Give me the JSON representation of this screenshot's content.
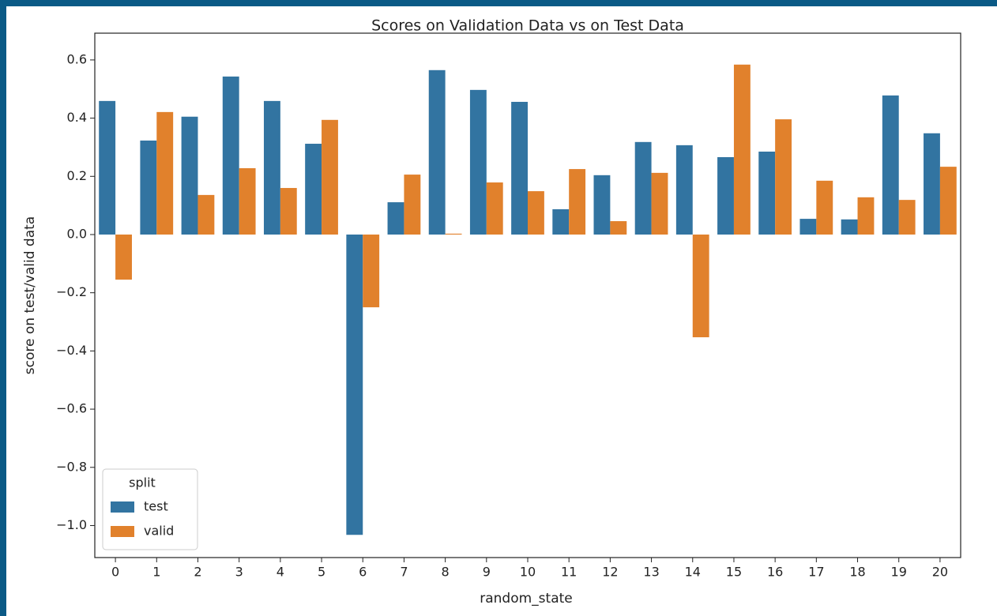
{
  "chart_data": {
    "type": "grouped_bar",
    "title": "Scores on Validation Data vs on Test Data",
    "x_label": "random_state",
    "y_label": "score on test/valid data",
    "categories": [
      "0",
      "1",
      "2",
      "3",
      "4",
      "5",
      "6",
      "7",
      "8",
      "9",
      "10",
      "11",
      "12",
      "13",
      "14",
      "15",
      "16",
      "17",
      "18",
      "19",
      "20"
    ],
    "series": [
      {
        "name": "test",
        "color": "#3274a1",
        "values": [
          0.459,
          0.323,
          0.405,
          0.543,
          0.459,
          0.312,
          -1.032,
          0.111,
          0.565,
          0.497,
          0.456,
          0.087,
          0.204,
          0.318,
          0.307,
          0.266,
          0.285,
          0.054,
          0.052,
          0.478,
          0.348
        ]
      },
      {
        "name": "valid",
        "color": "#e1812c",
        "values": [
          -0.155,
          0.421,
          0.136,
          0.228,
          0.16,
          0.394,
          -0.25,
          0.206,
          0.003,
          0.179,
          0.149,
          0.225,
          0.046,
          0.212,
          -0.353,
          0.584,
          0.396,
          0.185,
          0.128,
          0.119,
          0.233
        ]
      }
    ],
    "ylim": [
      -1.11,
      0.692
    ],
    "yticks": [
      {
        "value": -1.0,
        "label": "−1.0"
      },
      {
        "value": -0.8,
        "label": "−0.8"
      },
      {
        "value": -0.6,
        "label": "−0.6"
      },
      {
        "value": -0.4,
        "label": "−0.4"
      },
      {
        "value": -0.2,
        "label": "−0.2"
      },
      {
        "value": 0.0,
        "label": "0.0"
      },
      {
        "value": 0.2,
        "label": "0.2"
      },
      {
        "value": 0.4,
        "label": "0.4"
      },
      {
        "value": 0.6,
        "label": "0.6"
      }
    ],
    "grid": false,
    "legend": {
      "title": "split",
      "loc": "lower left"
    }
  }
}
